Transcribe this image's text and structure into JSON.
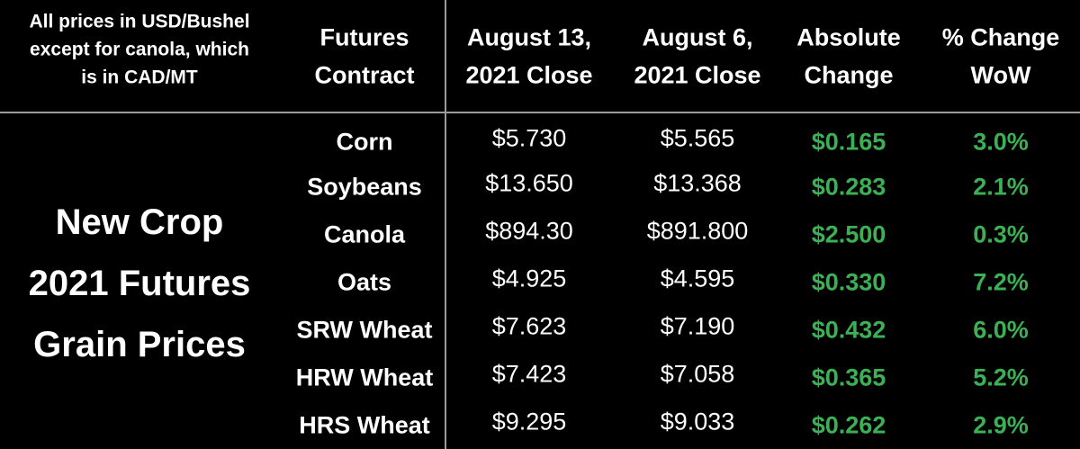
{
  "note": [
    "All prices in USD/Bushel",
    "except for canola, which",
    "is in CAD/MT"
  ],
  "title": [
    "New Crop",
    "2021 Futures",
    "Grain Prices"
  ],
  "table": {
    "headers": [
      [
        "Futures",
        "Contract"
      ],
      [
        "August 13,",
        "2021 Close"
      ],
      [
        "August 6,",
        "2021 Close"
      ],
      [
        "Absolute",
        "Change"
      ],
      [
        "% Change",
        "WoW"
      ]
    ],
    "rows": [
      [
        "Corn",
        "$5.730",
        "$5.565",
        "$0.165",
        "3.0%"
      ],
      [
        "Soybeans",
        "$13.650",
        "$13.368",
        "$0.283",
        "2.1%"
      ],
      [
        "Canola",
        "$894.30",
        "$891.800",
        "$2.500",
        "0.3%"
      ],
      [
        "Oats",
        "$4.925",
        "$4.595",
        "$0.330",
        "7.2%"
      ],
      [
        "SRW Wheat",
        "$7.623",
        "$7.190",
        "$0.432",
        "6.0%"
      ],
      [
        "HRW Wheat",
        "$7.423",
        "$7.058",
        "$0.365",
        "5.2%"
      ],
      [
        "HRS Wheat",
        "$9.295",
        "$9.033",
        "$0.262",
        "2.9%"
      ]
    ]
  }
}
